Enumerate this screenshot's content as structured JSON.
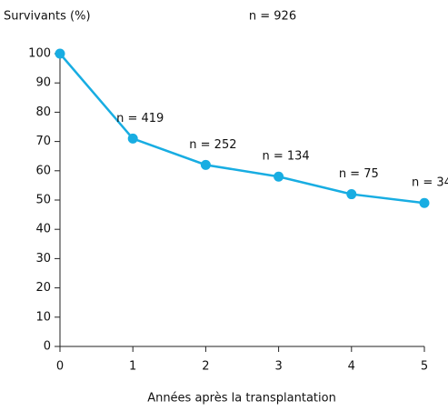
{
  "chart_data": {
    "type": "line",
    "title": "n = 926",
    "y_label": "Survivants (%)",
    "x_label": "Années après la transplantation",
    "x": [
      0,
      1,
      2,
      3,
      4,
      5
    ],
    "series": [
      {
        "color": "#18ade2",
        "values": [
          100,
          71,
          62,
          58,
          52,
          49
        ]
      }
    ],
    "point_labels": [
      null,
      "n = 419",
      "n = 252",
      "n = 134",
      "n = 75",
      "n = 34"
    ],
    "xlim": [
      0,
      5
    ],
    "xticks": [
      0,
      1,
      2,
      3,
      4,
      5
    ],
    "ylim": [
      0,
      100
    ],
    "yticks": [
      0,
      10,
      20,
      30,
      40,
      50,
      60,
      70,
      80,
      90,
      100
    ],
    "grid": false
  }
}
